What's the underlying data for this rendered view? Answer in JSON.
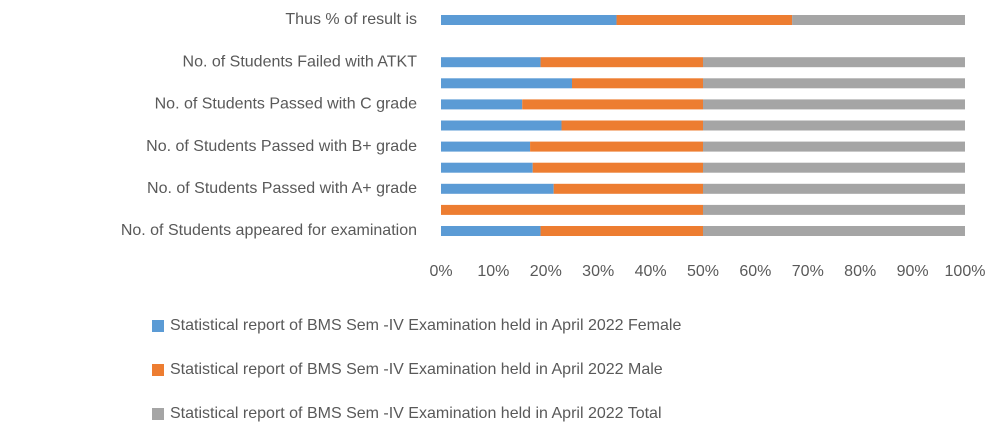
{
  "chart_data": {
    "type": "stacked-bar-horizontal",
    "categories": [
      "Thus % of result is",
      null,
      "No. of Students Failed with ATKT",
      null,
      "No. of Students Passed with  C grade",
      null,
      "No. of Students Passed with B+ grade",
      null,
      "No. of Students Passed with  A+ grade",
      null,
      "No. of Students appeared for examination"
    ],
    "series": [
      {
        "name": "Statistical report of BMS Sem -IV Examination held in April  2022 Female",
        "color": "#5b9bd5",
        "values": [
          33.5,
          null,
          19,
          25,
          15.5,
          23,
          17,
          17.5,
          21.5,
          0,
          19
        ]
      },
      {
        "name": "Statistical report of BMS Sem -IV Examination held in April  2022 Male",
        "color": "#ed7d31",
        "values": [
          33.5,
          null,
          31,
          25,
          34.5,
          27,
          33,
          32.5,
          28.5,
          50,
          31
        ]
      },
      {
        "name": "Statistical report of BMS Sem -IV Examination held in April  2022 Total",
        "color": "#a5a5a5",
        "values": [
          33,
          null,
          50,
          50,
          50,
          50,
          50,
          50,
          50,
          50,
          50
        ]
      }
    ],
    "xlim": [
      0,
      100
    ],
    "xticks": [
      {
        "value": 0,
        "label": "0%"
      },
      {
        "value": 10,
        "label": "10%"
      },
      {
        "value": 20,
        "label": "20%"
      },
      {
        "value": 30,
        "label": "30%"
      },
      {
        "value": 40,
        "label": "40%"
      },
      {
        "value": 50,
        "label": "50%"
      },
      {
        "value": 60,
        "label": "60%"
      },
      {
        "value": 70,
        "label": "70%"
      },
      {
        "value": 80,
        "label": "80%"
      },
      {
        "value": 90,
        "label": "90%"
      },
      {
        "value": 100,
        "label": "100%"
      }
    ],
    "grid": false,
    "legend": "bottom"
  }
}
